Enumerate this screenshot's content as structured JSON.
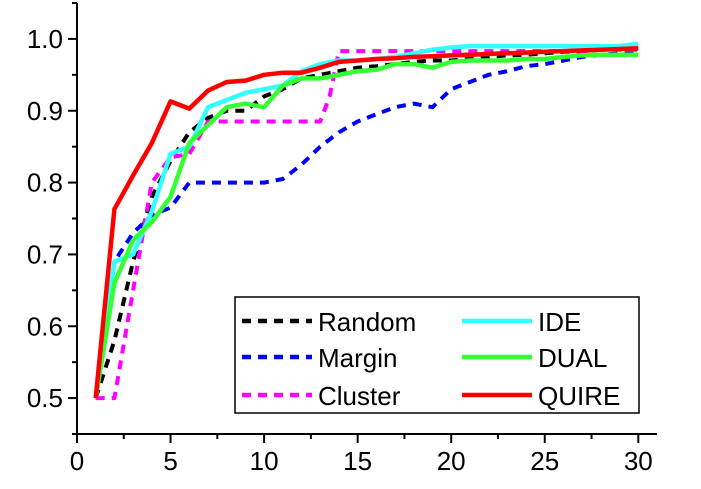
{
  "chart_data": {
    "type": "line",
    "xlim": [
      0,
      31
    ],
    "ylim": [
      0.45,
      1.05
    ],
    "x_ticks": [
      0,
      5,
      10,
      15,
      20,
      25,
      30
    ],
    "y_ticks": [
      0.5,
      0.6,
      0.7,
      0.8,
      0.9,
      1.0
    ],
    "x_tick_labels": [
      "0",
      "5",
      "10",
      "15",
      "20",
      "25",
      "30"
    ],
    "y_tick_labels": [
      "0.5",
      "0.6",
      "0.7",
      "0.8",
      "0.9",
      "1.0"
    ],
    "grid": false,
    "legend_position": "bottom-right",
    "series": [
      {
        "name": "Random",
        "color": "#000000",
        "dash": true,
        "x": [
          1,
          2,
          3,
          4,
          5,
          6,
          7,
          8,
          9,
          10,
          11,
          12,
          13,
          14,
          15,
          16,
          17,
          18,
          19,
          20,
          21,
          22,
          23,
          24,
          25,
          26,
          27,
          28,
          29,
          30
        ],
        "y": [
          0.5,
          0.58,
          0.69,
          0.78,
          0.83,
          0.87,
          0.89,
          0.9,
          0.9,
          0.92,
          0.93,
          0.945,
          0.95,
          0.955,
          0.96,
          0.962,
          0.965,
          0.968,
          0.97,
          0.97,
          0.972,
          0.975,
          0.977,
          0.978,
          0.98,
          0.982,
          0.983,
          0.985,
          0.987,
          0.988
        ]
      },
      {
        "name": "Margin",
        "color": "#0000ff",
        "dash": true,
        "x": [
          1,
          2,
          3,
          4,
          5,
          6,
          7,
          8,
          9,
          10,
          11,
          12,
          13,
          14,
          15,
          16,
          17,
          18,
          19,
          20,
          21,
          22,
          23,
          24,
          25,
          26,
          27,
          28,
          29,
          30
        ],
        "y": [
          0.5,
          0.69,
          0.73,
          0.755,
          0.765,
          0.8,
          0.8,
          0.8,
          0.8,
          0.8,
          0.805,
          0.825,
          0.85,
          0.87,
          0.885,
          0.895,
          0.905,
          0.91,
          0.905,
          0.93,
          0.94,
          0.95,
          0.955,
          0.962,
          0.965,
          0.97,
          0.975,
          0.978,
          0.98,
          0.98
        ]
      },
      {
        "name": "Cluster",
        "color": "#ff00ff",
        "dash": true,
        "x": [
          1,
          2,
          3,
          4,
          5,
          6,
          7,
          8,
          9,
          10,
          11,
          12,
          13,
          13.5,
          14,
          15,
          16,
          17,
          18,
          19,
          20,
          21,
          22,
          23,
          24,
          25,
          26,
          27,
          28,
          29,
          30
        ],
        "y": [
          0.5,
          0.5,
          0.65,
          0.8,
          0.835,
          0.84,
          0.885,
          0.885,
          0.885,
          0.885,
          0.885,
          0.885,
          0.885,
          0.92,
          0.983,
          0.983,
          0.983,
          0.983,
          0.983,
          0.983,
          0.983,
          0.983,
          0.983,
          0.983,
          0.983,
          0.983,
          0.983,
          0.983,
          0.985,
          0.985,
          0.985
        ]
      },
      {
        "name": "IDE",
        "color": "#33ffff",
        "dash": false,
        "x": [
          1,
          2,
          3,
          4,
          5,
          6,
          7,
          8,
          9,
          10,
          11,
          12,
          13,
          14,
          15,
          16,
          17,
          18,
          19,
          20,
          21,
          22,
          23,
          24,
          25,
          26,
          27,
          28,
          29,
          30
        ],
        "y": [
          0.5,
          0.69,
          0.7,
          0.76,
          0.84,
          0.85,
          0.905,
          0.915,
          0.925,
          0.93,
          0.935,
          0.955,
          0.965,
          0.97,
          0.97,
          0.972,
          0.975,
          0.98,
          0.985,
          0.988,
          0.99,
          0.99,
          0.99,
          0.99,
          0.99,
          0.99,
          0.99,
          0.99,
          0.99,
          0.993
        ]
      },
      {
        "name": "DUAL",
        "color": "#33ff33",
        "dash": false,
        "x": [
          1,
          2,
          3,
          4,
          5,
          6,
          7,
          8,
          9,
          10,
          11,
          12,
          13,
          14,
          15,
          16,
          17,
          18,
          19,
          20,
          21,
          22,
          23,
          24,
          25,
          26,
          27,
          28,
          29,
          30
        ],
        "y": [
          0.5,
          0.66,
          0.72,
          0.745,
          0.78,
          0.855,
          0.88,
          0.905,
          0.91,
          0.905,
          0.935,
          0.945,
          0.945,
          0.95,
          0.955,
          0.957,
          0.965,
          0.965,
          0.96,
          0.968,
          0.97,
          0.97,
          0.97,
          0.972,
          0.972,
          0.975,
          0.977,
          0.978,
          0.978,
          0.978
        ]
      },
      {
        "name": "QUIRE",
        "color": "#ff0000",
        "dash": false,
        "x": [
          1,
          2,
          3,
          4,
          5,
          6,
          7,
          8,
          9,
          10,
          11,
          12,
          13,
          14,
          15,
          16,
          17,
          18,
          19,
          20,
          21,
          22,
          23,
          24,
          25,
          26,
          27,
          28,
          29,
          30
        ],
        "y": [
          0.5,
          0.763,
          0.81,
          0.855,
          0.913,
          0.903,
          0.928,
          0.94,
          0.942,
          0.95,
          0.953,
          0.953,
          0.96,
          0.968,
          0.97,
          0.972,
          0.973,
          0.975,
          0.976,
          0.977,
          0.978,
          0.979,
          0.98,
          0.981,
          0.982,
          0.983,
          0.984,
          0.985,
          0.986,
          0.987
        ]
      }
    ]
  }
}
